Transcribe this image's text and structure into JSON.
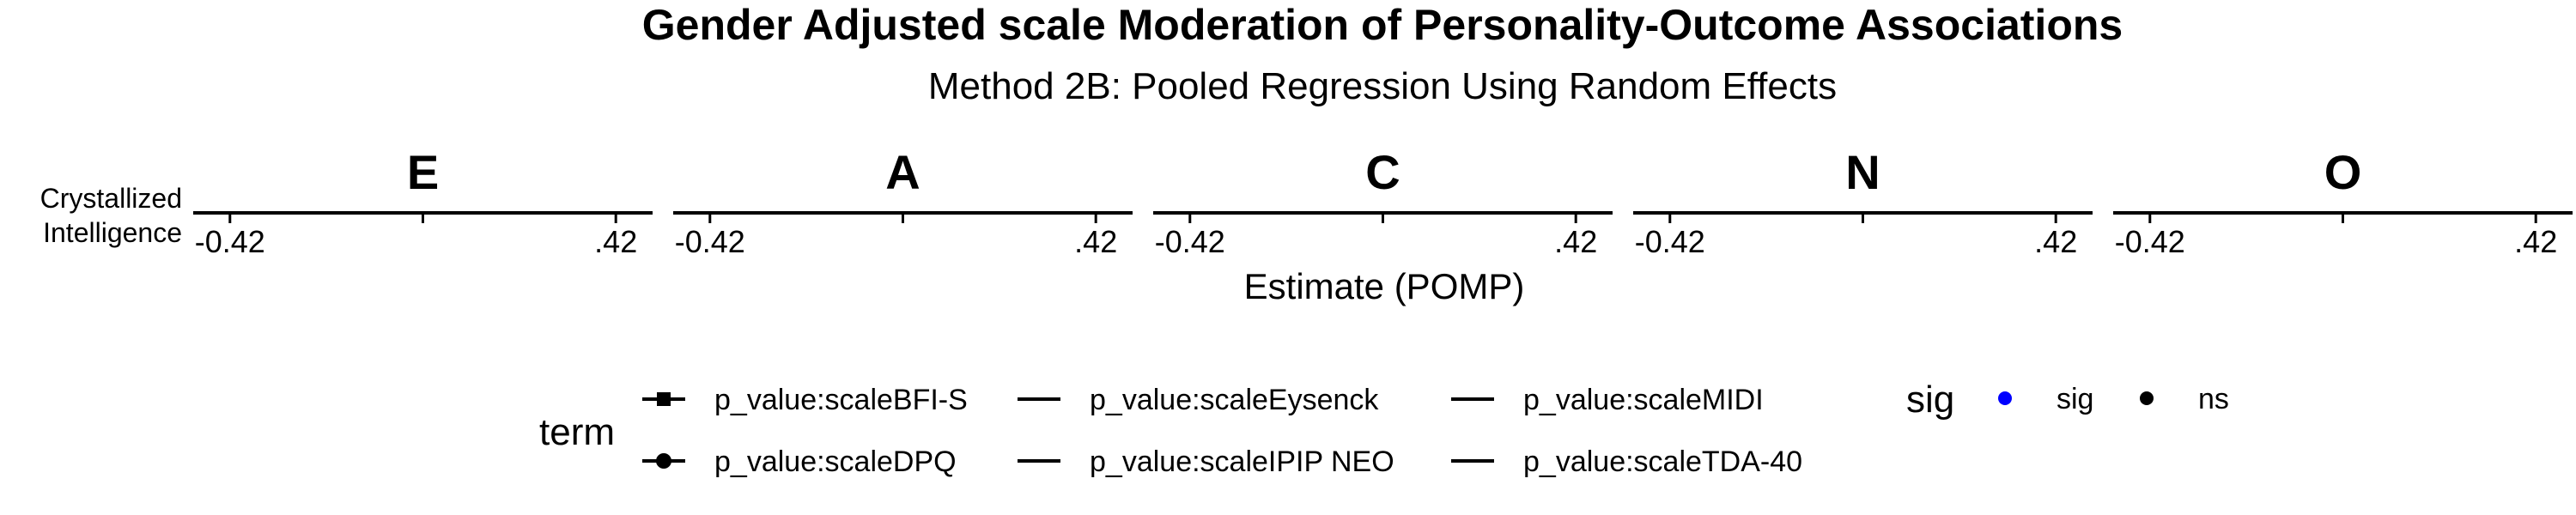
{
  "chart_data": {
    "type": "scatter",
    "title": "Gender Adjusted scale Moderation of Personality-Outcome Associations",
    "subtitle": "Method 2B: Pooled Regression Using Random Effects",
    "xlabel": "Estimate (POMP)",
    "ylabel": "",
    "row_labels": [
      "Crystallized",
      "Intelligence"
    ],
    "panels": [
      "E",
      "A",
      "C",
      "N",
      "O"
    ],
    "xlim": [
      -0.5,
      0.5
    ],
    "x_ticks": [
      -0.42,
      0,
      0.42
    ],
    "x_tick_labels": [
      "-0.42",
      "",
      ".42"
    ],
    "grid": false,
    "points": [],
    "legend": {
      "position": "bottom",
      "term_title": "term",
      "term_entries": [
        {
          "label": "p_value:scaleBFI-S",
          "marker": "square"
        },
        {
          "label": "p_value:scaleDPQ",
          "marker": "circle"
        },
        {
          "label": "p_value:scaleEysenck",
          "marker": "none"
        },
        {
          "label": "p_value:scaleIPIP NEO",
          "marker": "none"
        },
        {
          "label": "p_value:scaleMIDI",
          "marker": "none"
        },
        {
          "label": "p_value:scaleTDA-40",
          "marker": "none"
        }
      ],
      "sig_title": "sig",
      "sig_entries": [
        {
          "label": "sig",
          "color": "#0000ff"
        },
        {
          "label": "ns",
          "color": "#000000"
        }
      ]
    }
  }
}
